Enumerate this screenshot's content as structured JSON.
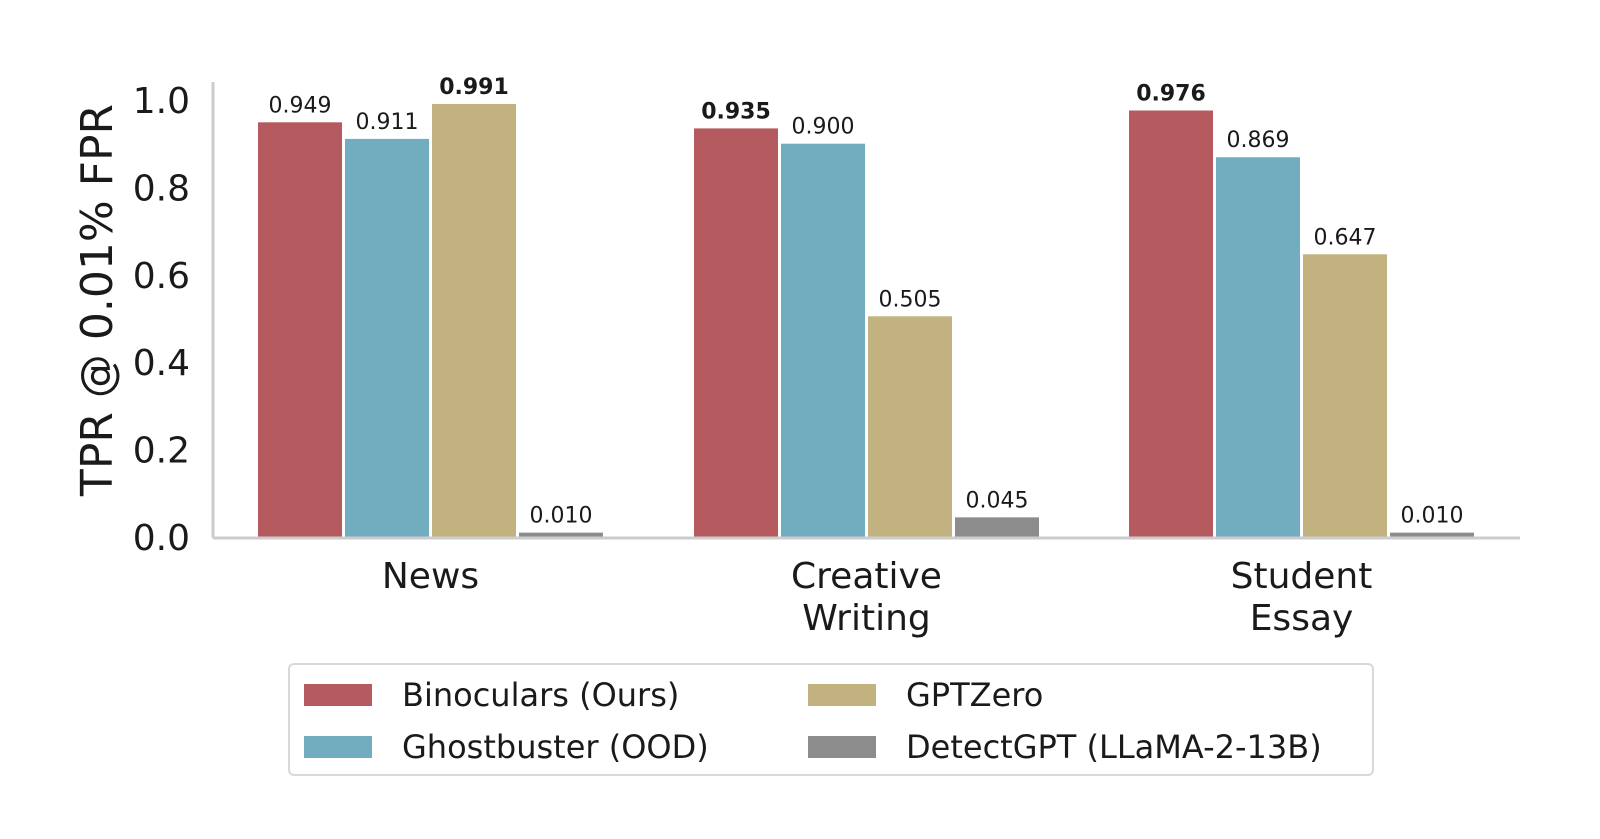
{
  "chart_data": {
    "type": "bar",
    "title": "",
    "xlabel": "",
    "ylabel": "TPR @ 0.01% FPR",
    "ylim": [
      0,
      1.0
    ],
    "yticks": [
      "0.0",
      "0.2",
      "0.4",
      "0.6",
      "0.8",
      "1.0"
    ],
    "grid": false,
    "legend_position": "bottom",
    "categories": [
      "News",
      "Creative\nWriting",
      "Student\nEssay"
    ],
    "category_lines": [
      [
        "News"
      ],
      [
        "Creative",
        "Writing"
      ],
      [
        "Student",
        "Essay"
      ]
    ],
    "series": [
      {
        "name": "Binoculars (Ours)",
        "color": "#b55b60",
        "values": [
          0.949,
          0.935,
          0.976
        ],
        "labels": [
          "0.949",
          "0.935",
          "0.976"
        ],
        "bold": [
          false,
          true,
          true
        ]
      },
      {
        "name": "Ghostbuster (OOD)",
        "color": "#72adbf",
        "values": [
          0.911,
          0.9,
          0.869
        ],
        "labels": [
          "0.911",
          "0.900",
          "0.869"
        ],
        "bold": [
          false,
          false,
          false
        ]
      },
      {
        "name": "GPTZero",
        "color": "#c2b27f",
        "values": [
          0.991,
          0.505,
          0.647
        ],
        "labels": [
          "0.991",
          "0.505",
          "0.647"
        ],
        "bold": [
          true,
          false,
          false
        ]
      },
      {
        "name": "DetectGPT (LLaMA-2-13B)",
        "color": "#8c8c8c",
        "values": [
          0.01,
          0.045,
          0.01
        ],
        "labels": [
          "0.010",
          "0.045",
          "0.010"
        ],
        "bold": [
          false,
          false,
          false
        ]
      }
    ]
  },
  "legend": {
    "items": [
      {
        "label": "Binoculars (Ours)",
        "color": "#b55b60"
      },
      {
        "label": "Ghostbuster (OOD)",
        "color": "#72adbf"
      },
      {
        "label": "GPTZero",
        "color": "#c2b27f"
      },
      {
        "label": "DetectGPT (LLaMA-2-13B)",
        "color": "#8c8c8c"
      }
    ]
  }
}
